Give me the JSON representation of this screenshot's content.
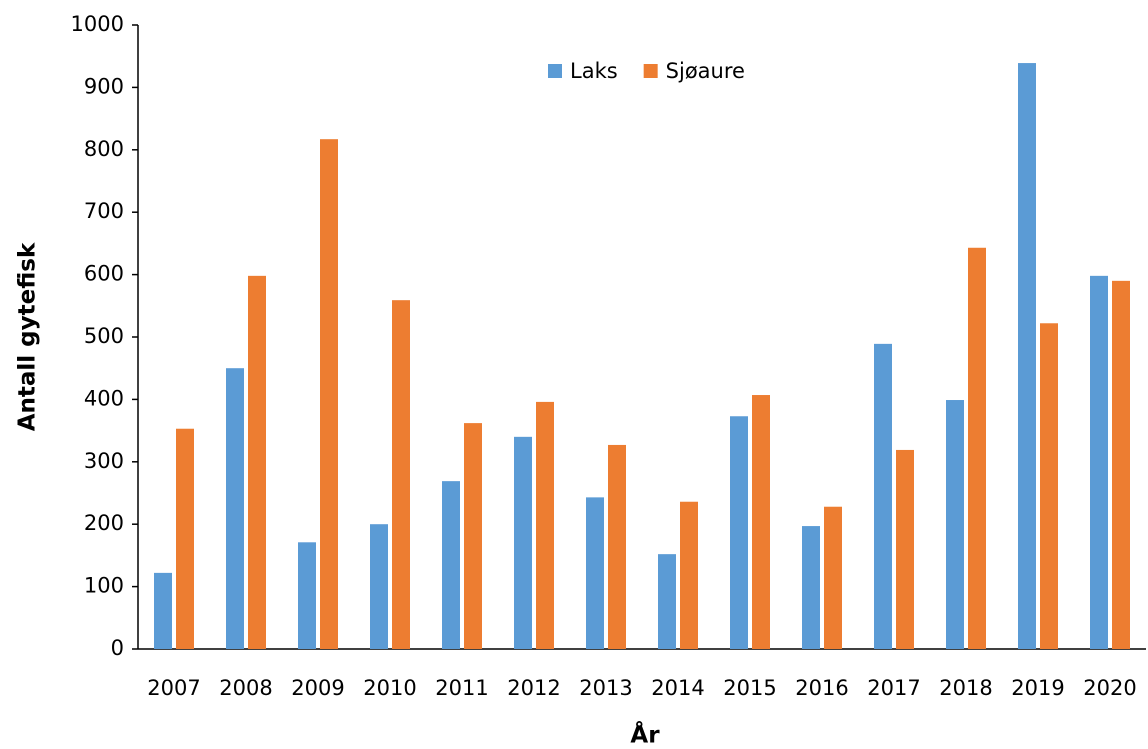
{
  "chart_data": {
    "type": "bar",
    "x_label": "År",
    "y_label": "Antall gytefisk",
    "categories": [
      "2007",
      "2008",
      "2009",
      "2010",
      "2011",
      "2012",
      "2013",
      "2014",
      "2015",
      "2016",
      "2017",
      "2018",
      "2019",
      "2020"
    ],
    "series": [
      {
        "name": "Laks",
        "color": "#5b9bd5",
        "values": [
          122,
          450,
          171,
          200,
          269,
          340,
          243,
          152,
          373,
          197,
          489,
          399,
          939,
          598
        ]
      },
      {
        "name": "Sjøaure",
        "color": "#ed7d31",
        "values": [
          353,
          598,
          817,
          559,
          362,
          396,
          327,
          236,
          407,
          228,
          319,
          643,
          522,
          590
        ]
      }
    ],
    "ylim": [
      0,
      1000
    ],
    "yticks": [
      0,
      100,
      200,
      300,
      400,
      500,
      600,
      700,
      800,
      900,
      1000
    ],
    "grid": false,
    "legend": "top"
  }
}
